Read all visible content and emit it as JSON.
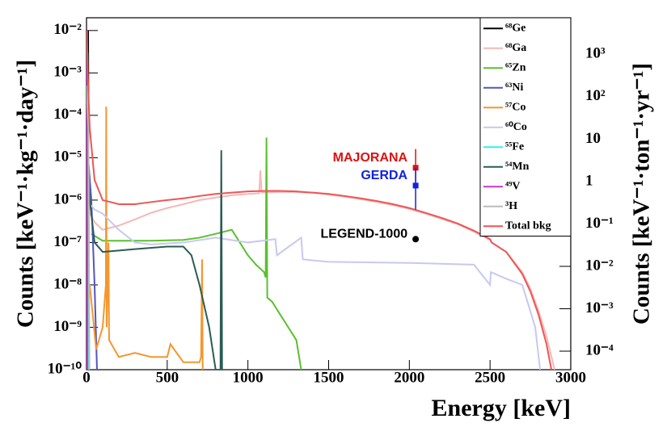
{
  "chart_data": {
    "type": "line",
    "x_label": "Energy [keV]",
    "y_label": "Counts [keV⁻¹·kg⁻¹·day⁻¹]",
    "y2_label": "Counts [keV⁻¹·ton⁻¹·yr⁻¹]",
    "xlim": [
      0,
      3000
    ],
    "xticks": [
      0,
      500,
      1000,
      1500,
      2000,
      2500,
      3000
    ],
    "ylim": [
      1e-10,
      0.02
    ],
    "log_y": true,
    "yticks": [
      {
        "value": 1e-10,
        "label": "10⁻¹⁰"
      },
      {
        "value": 1e-09,
        "label": "10⁻⁹"
      },
      {
        "value": 1e-08,
        "label": "10⁻⁸"
      },
      {
        "value": 1e-07,
        "label": "10⁻⁷"
      },
      {
        "value": 1e-06,
        "label": "10⁻⁶"
      },
      {
        "value": 1e-05,
        "label": "10⁻⁵"
      },
      {
        "value": 0.0001,
        "label": "10⁻⁴"
      },
      {
        "value": 0.001,
        "label": "10⁻³"
      },
      {
        "value": 0.01,
        "label": "10⁻²"
      }
    ],
    "y2lim": [
      3.6525e-05,
      7305
    ],
    "y2ticks": [
      {
        "value": 0.0001,
        "label": "10⁻⁴"
      },
      {
        "value": 0.001,
        "label": "10⁻³"
      },
      {
        "value": 0.01,
        "label": "10⁻²"
      },
      {
        "value": 0.1,
        "label": "10⁻¹"
      },
      1,
      10,
      {
        "value": 100,
        "label": "10²"
      },
      {
        "value": 1000,
        "label": "10³"
      }
    ],
    "legend": "top-right",
    "series": [
      {
        "name": "⁶⁸Ge",
        "color": "#000000",
        "x": [
          5,
          8,
          10,
          12,
          15
        ],
        "values": [
          1e-10,
          0.002,
          0.01,
          0.0001,
          1e-10
        ]
      },
      {
        "name": "⁶⁸Ga",
        "color": "#f5b8b8",
        "x": [
          20,
          50,
          100,
          200,
          300,
          400,
          500,
          600,
          700,
          800,
          900,
          1000,
          1070,
          1077,
          1085,
          1100,
          1200,
          1300,
          1400,
          1500,
          1600,
          1700,
          1800,
          1900,
          2000,
          2100,
          2200,
          2300,
          2400,
          2500,
          2510,
          2600,
          2700,
          2750,
          2800,
          2850,
          2900
        ],
        "values": [
          5e-07,
          3e-07,
          2e-07,
          2.5e-07,
          3.5e-07,
          5e-07,
          6.5e-07,
          8e-07,
          1e-06,
          1.15e-06,
          1.3e-06,
          1.4e-06,
          1.45e-06,
          5e-06,
          1.5e-06,
          1.5e-06,
          1.55e-06,
          1.55e-06,
          1.5e-06,
          1.35e-06,
          1.2e-06,
          1.05e-06,
          9e-07,
          7.6e-07,
          6.2e-07,
          4.8e-07,
          3.6e-07,
          2.7e-07,
          1.8e-07,
          1.15e-07,
          1e-07,
          6e-08,
          2e-08,
          8e-09,
          2.5e-09,
          6e-10,
          1e-10
        ]
      },
      {
        "name": "⁶⁵Zn",
        "color": "#5ac02e",
        "x": [
          30,
          100,
          200,
          400,
          600,
          700,
          800,
          900,
          950,
          1000,
          1050,
          1100,
          1110,
          1115,
          1120,
          1150,
          1200,
          1250,
          1300,
          1330
        ],
        "values": [
          1.6e-07,
          1.1e-07,
          1.1e-07,
          1.1e-07,
          1.15e-07,
          1.3e-07,
          1.6e-07,
          2e-07,
          1e-07,
          5e-08,
          3e-08,
          2e-08,
          1.5e-08,
          3e-05,
          5e-09,
          4e-09,
          2e-09,
          1e-09,
          5e-10,
          1e-10
        ]
      },
      {
        "name": "⁶³Ni",
        "color": "#5555bb",
        "x": [
          0,
          10,
          30,
          50,
          65
        ],
        "values": [
          3e-05,
          1e-05,
          1e-06,
          1e-08,
          1e-10
        ]
      },
      {
        "name": "⁵⁷Co",
        "color": "#f5962e",
        "x": [
          20,
          60,
          100,
          120,
          122,
          125,
          136,
          140,
          200,
          300,
          400,
          500,
          520,
          600,
          700,
          710,
          716,
          720
        ],
        "values": [
          1e-08,
          3e-10,
          1e-09,
          1e-08,
          0.00016,
          1e-09,
          1e-07,
          5e-10,
          2e-10,
          2.5e-10,
          2e-10,
          2e-10,
          4e-10,
          1.5e-10,
          1.5e-10,
          2e-10,
          4e-08,
          1e-10
        ]
      },
      {
        "name": "⁶⁰Co",
        "color": "#c8c8f0",
        "x": [
          0,
          50,
          100,
          200,
          300,
          400,
          600,
          800,
          1000,
          1170,
          1180,
          1330,
          1340,
          1500,
          2000,
          2400,
          2500,
          2505,
          2600,
          2700,
          2780,
          2810
        ],
        "values": [
          1e-06,
          6e-07,
          4.8e-07,
          2e-07,
          1e-07,
          9e-08,
          1e-07,
          1.3e-07,
          1e-07,
          1.2e-07,
          5e-08,
          1.3e-07,
          4e-08,
          3.5e-08,
          3.3e-08,
          3e-08,
          1e-08,
          2e-08,
          1.4e-08,
          1e-08,
          1e-09,
          1e-10
        ]
      },
      {
        "name": "⁵⁵Fe",
        "color": "#33eeee",
        "x": [
          2,
          5,
          6,
          8,
          10
        ],
        "values": [
          1e-10,
          0.001,
          0.003,
          0.0001,
          1e-10
        ]
      },
      {
        "name": "⁵⁴Mn",
        "color": "#2b5c55",
        "x": [
          0,
          20,
          50,
          100,
          300,
          500,
          600,
          650,
          700,
          760,
          800,
          830,
          835,
          840
        ],
        "values": [
          1.5e-05,
          1e-06,
          1e-07,
          6e-08,
          7e-08,
          8e-08,
          8e-08,
          5e-08,
          1e-08,
          1e-09,
          1e-10,
          1e-10,
          1.5e-05,
          1e-10
        ]
      },
      {
        "name": "⁴⁹V",
        "color": "#cc33cc",
        "x": [
          0,
          3,
          4,
          5
        ],
        "values": [
          1e-10,
          0.001,
          0.01,
          1e-10
        ]
      },
      {
        "name": "³H",
        "color": "#bbbbbb",
        "x": [
          0,
          5,
          12,
          18
        ],
        "values": [
          0.0005,
          0.0002,
          5e-05,
          1e-10
        ]
      },
      {
        "name": "Total bkg",
        "color": "#ee5555",
        "x": [
          0,
          5,
          10,
          20,
          50,
          100,
          150,
          200,
          300,
          400,
          500,
          600,
          700,
          800,
          900,
          1000,
          1100,
          1200,
          1300,
          1400,
          1500,
          1600,
          1700,
          1800,
          1900,
          2000,
          2100,
          2200,
          2300,
          2400,
          2500,
          2510,
          2600,
          2700,
          2750,
          2800,
          2850,
          2880
        ],
        "values": [
          0.01,
          0.003,
          0.0005,
          5e-05,
          3e-06,
          1e-06,
          9e-07,
          8e-07,
          8e-07,
          9e-07,
          1e-06,
          1.1e-06,
          1.25e-06,
          1.4e-06,
          1.5e-06,
          1.6e-06,
          1.65e-06,
          1.65e-06,
          1.6e-06,
          1.5e-06,
          1.4e-06,
          1.25e-06,
          1.1e-06,
          9.5e-07,
          8e-07,
          6.5e-07,
          5e-07,
          3.8e-07,
          2.8e-07,
          1.9e-07,
          1.2e-07,
          1e-07,
          6e-08,
          1.8e-08,
          7e-09,
          2e-09,
          4e-10,
          1e-10
        ]
      }
    ],
    "markers": [
      {
        "label": "MAJORANA",
        "color": "#dd1111",
        "x": 2039,
        "value": 5.8e-06,
        "low": 2.2e-06,
        "high": 1.6e-05
      },
      {
        "label": "GERDA",
        "color": "#1122dd",
        "x": 2039,
        "value": 2.2e-06,
        "low": 6e-07,
        "high": 5.8e-06
      },
      {
        "label": "LEGEND-1000",
        "color": "#000000",
        "x": 2039,
        "value": 1.2e-07
      }
    ]
  }
}
